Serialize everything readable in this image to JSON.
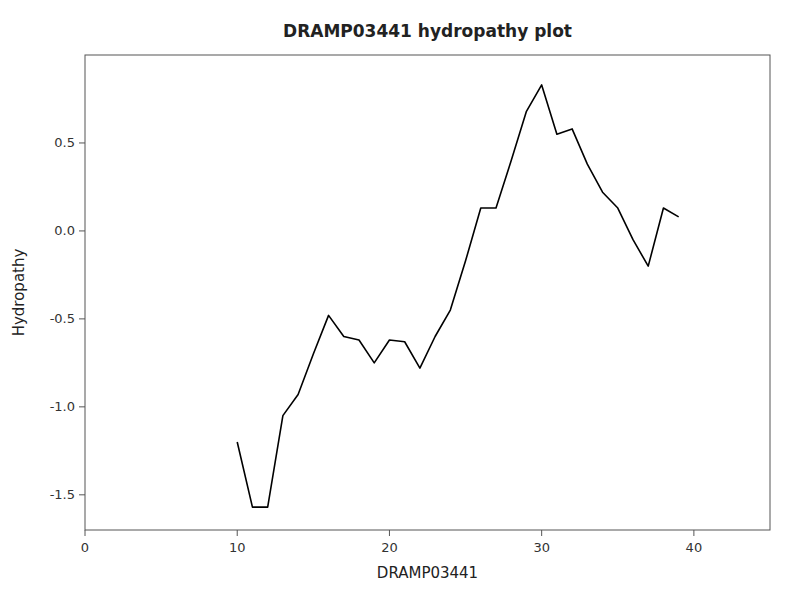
{
  "chart_data": {
    "type": "line",
    "title": "DRAMP03441 hydropathy plot",
    "xlabel": "DRAMP03441",
    "ylabel": "Hydropathy",
    "x": [
      10,
      11,
      12,
      13,
      14,
      15,
      16,
      17,
      18,
      19,
      20,
      21,
      22,
      23,
      24,
      25,
      26,
      27,
      28,
      29,
      30,
      31,
      32,
      33,
      34,
      35,
      36,
      37,
      38,
      39
    ],
    "values": [
      -1.2,
      -1.57,
      -1.57,
      -1.05,
      -0.93,
      -0.7,
      -0.48,
      -0.6,
      -0.62,
      -0.75,
      -0.62,
      -0.63,
      -0.78,
      -0.6,
      -0.45,
      -0.17,
      0.13,
      0.13,
      0.4,
      0.68,
      0.83,
      0.55,
      0.58,
      0.38,
      0.22,
      0.13,
      -0.05,
      -0.2,
      0.13,
      0.08
    ],
    "color": "#000000",
    "xlim": [
      0,
      45
    ],
    "ylim": [
      -1.7,
      1.0
    ],
    "xticks": [
      0,
      10,
      20,
      30,
      40
    ],
    "yticks": [
      -1.5,
      {
        "value": -1.0,
        "label": "-1.0"
      },
      -0.5,
      {
        "value": 0.0,
        "label": "0.0"
      },
      0.5
    ],
    "grid": false
  }
}
